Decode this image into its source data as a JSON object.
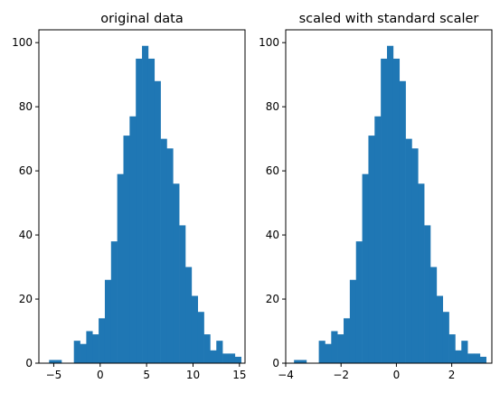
{
  "chart_data": [
    {
      "type": "bar",
      "title": "original data",
      "xlabel": "",
      "ylabel": "",
      "xlim": [
        -6.6,
        15.6
      ],
      "ylim": [
        0,
        104
      ],
      "xticks": [
        -5,
        0,
        5,
        10,
        15
      ],
      "xtick_labels": [
        "−5",
        "0",
        "5",
        "10",
        "15"
      ],
      "yticks": [
        0,
        20,
        40,
        60,
        80,
        100
      ],
      "ytick_labels": [
        "0",
        "20",
        "40",
        "60",
        "80",
        "100"
      ],
      "color": "#1f77b4",
      "bins": {
        "start": -5.5,
        "width": 0.667,
        "counts": [
          1,
          1,
          0,
          0,
          7,
          6,
          10,
          9,
          14,
          26,
          38,
          59,
          71,
          77,
          95,
          99,
          95,
          88,
          70,
          67,
          56,
          43,
          30,
          21,
          16,
          9,
          4,
          7,
          3,
          3,
          2
        ]
      }
    },
    {
      "type": "bar",
      "title": "scaled with standard scaler",
      "xlabel": "",
      "ylabel": "",
      "xlim": [
        -4.0,
        3.45
      ],
      "ylim": [
        0,
        104
      ],
      "xticks": [
        -4,
        -2,
        0,
        2
      ],
      "xtick_labels": [
        "−4",
        "−2",
        "0",
        "2"
      ],
      "yticks": [
        0,
        20,
        40,
        60,
        80,
        100
      ],
      "ytick_labels": [
        "0",
        "20",
        "40",
        "60",
        "80",
        "100"
      ],
      "color": "#1f77b4",
      "bins": {
        "start": -3.7,
        "width": 0.224,
        "counts": [
          1,
          1,
          0,
          0,
          7,
          6,
          10,
          9,
          14,
          26,
          38,
          59,
          71,
          77,
          95,
          99,
          95,
          88,
          70,
          67,
          56,
          43,
          30,
          21,
          16,
          9,
          4,
          7,
          3,
          3,
          2
        ]
      }
    }
  ]
}
